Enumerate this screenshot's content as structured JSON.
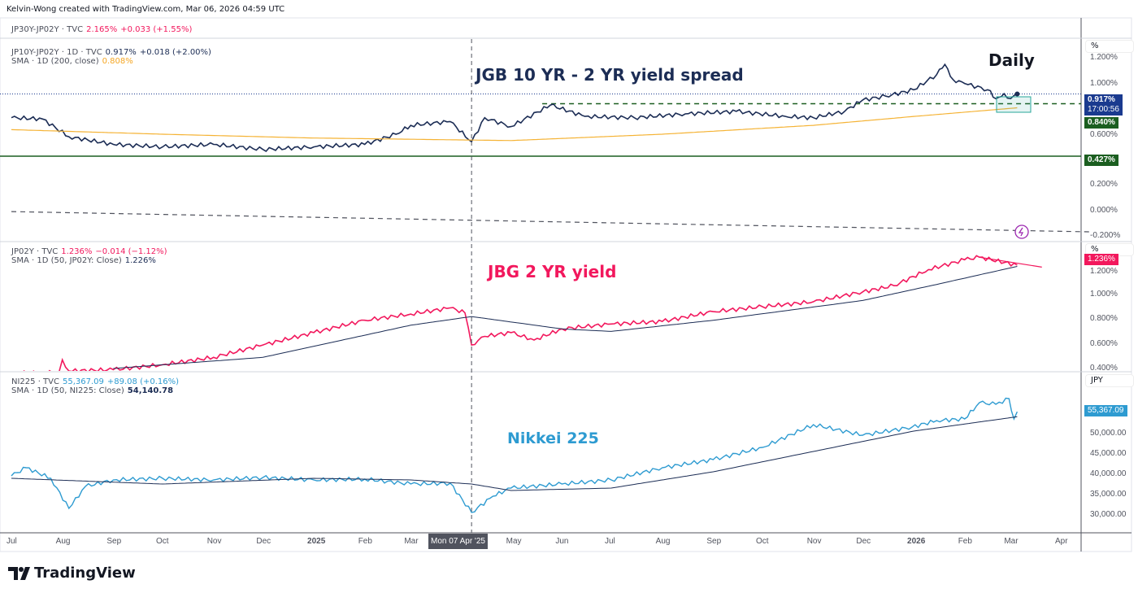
{
  "header": "Kelvin-Wong created with TradingView.com, Mar 06, 2026 04:59 UTC",
  "legend_top": {
    "symbol": "JP30Y-JP02Y · TVC",
    "value": "2.165%",
    "change": "+0.033 (+1.55%)"
  },
  "brand": "TradingView",
  "colors": {
    "spread": "#1c2d55",
    "sma200": "#f5b335",
    "jp02y": "#f2185d",
    "sma_dark": "#1c2d55",
    "nikkei": "#2e9bd1",
    "green": "#1b5e20",
    "box": "#26a69a"
  },
  "chart_data": [
    {
      "type": "line",
      "title": "JGB 10 YR - 2 YR yield spread",
      "annotation": "Daily",
      "unit": "%",
      "legend": {
        "symbol": "JP10Y-JP02Y · 1D · TVC",
        "value": "0.917%",
        "change": "+0.018 (+2.00%)",
        "sma_label": "SMA · 1D (200, close)",
        "sma_value": "0.808%"
      },
      "yticks": [
        "1.200%",
        "1.000%",
        "0.600%",
        "0.200%",
        "0.000%",
        "-0.200%"
      ],
      "ytick_values": [
        1.2,
        1.0,
        0.6,
        0.2,
        0.0,
        -0.2
      ],
      "ylim": [
        -0.24,
        1.35
      ],
      "tags": {
        "last": "0.917%",
        "countdown": "17:00:56",
        "support1": "0.840%",
        "support2": "0.427%"
      },
      "series": [
        {
          "key": "spread",
          "points": [
            [
              "2024-07-01",
              0.73
            ],
            [
              "2024-07-20",
              0.72
            ],
            [
              "2024-08-05",
              0.58
            ],
            [
              "2024-09-01",
              0.52
            ],
            [
              "2024-10-01",
              0.5
            ],
            [
              "2024-11-01",
              0.52
            ],
            [
              "2024-12-01",
              0.48
            ],
            [
              "2025-01-01",
              0.5
            ],
            [
              "2025-02-01",
              0.52
            ],
            [
              "2025-02-20",
              0.6
            ],
            [
              "2025-03-01",
              0.67
            ],
            [
              "2025-03-25",
              0.7
            ],
            [
              "2025-04-07",
              0.54
            ],
            [
              "2025-04-15",
              0.73
            ],
            [
              "2025-05-01",
              0.66
            ],
            [
              "2025-05-25",
              0.83
            ],
            [
              "2025-06-15",
              0.74
            ],
            [
              "2025-07-15",
              0.73
            ],
            [
              "2025-08-15",
              0.76
            ],
            [
              "2025-09-15",
              0.78
            ],
            [
              "2025-10-15",
              0.74
            ],
            [
              "2025-11-01",
              0.73
            ],
            [
              "2025-11-20",
              0.78
            ],
            [
              "2025-12-01",
              0.87
            ],
            [
              "2025-12-15",
              0.9
            ],
            [
              "2026-01-01",
              0.95
            ],
            [
              "2026-01-15",
              1.07
            ],
            [
              "2026-01-20",
              1.15
            ],
            [
              "2026-01-25",
              1.03
            ],
            [
              "2026-02-01",
              1.0
            ],
            [
              "2026-02-15",
              0.95
            ],
            [
              "2026-02-20",
              0.88
            ],
            [
              "2026-02-25",
              0.92
            ],
            [
              "2026-03-01",
              0.88
            ],
            [
              "2026-03-05",
              0.917
            ]
          ]
        },
        {
          "key": "sma200",
          "points": [
            [
              "2024-07-01",
              0.636
            ],
            [
              "2024-10-01",
              0.6
            ],
            [
              "2025-01-01",
              0.57
            ],
            [
              "2025-05-01",
              0.55
            ],
            [
              "2025-08-01",
              0.6
            ],
            [
              "2025-11-01",
              0.67
            ],
            [
              "2026-01-01",
              0.74
            ],
            [
              "2026-03-05",
              0.808
            ]
          ]
        }
      ],
      "levels": [
        {
          "value": 0.84,
          "from": "2025-05-20",
          "style": "dashed"
        },
        {
          "value": 0.427,
          "style": "solid"
        }
      ],
      "trendline": {
        "from": [
          "2024-07-01",
          -0.01
        ],
        "to": [
          "2026-04-20",
          -0.17
        ]
      }
    },
    {
      "type": "line",
      "title": "JBG 2 YR yield",
      "unit": "%",
      "legend": {
        "symbol": "JP02Y · TVC",
        "value": "1.236%",
        "change": "−0.014 (−1.12%)",
        "sma_label": "SMA · 1D (50, JP02Y: Close)",
        "sma_value": "1.226%"
      },
      "yticks": [
        "1.200%",
        "1.000%",
        "0.800%",
        "0.600%",
        "0.400%"
      ],
      "ytick_values": [
        1.2,
        1.0,
        0.8,
        0.6,
        0.4
      ],
      "ylim": [
        0.38,
        1.42
      ],
      "tags": {
        "last": "1.236%"
      },
      "series": [
        {
          "key": "jp02y",
          "points": [
            [
              "2024-07-01",
              0.36
            ],
            [
              "2024-07-30",
              0.37
            ],
            [
              "2024-08-01",
              0.47
            ],
            [
              "2024-08-05",
              0.38
            ],
            [
              "2024-09-01",
              0.39
            ],
            [
              "2024-10-01",
              0.43
            ],
            [
              "2024-11-01",
              0.49
            ],
            [
              "2024-12-01",
              0.59
            ],
            [
              "2025-01-01",
              0.69
            ],
            [
              "2025-02-01",
              0.79
            ],
            [
              "2025-03-01",
              0.84
            ],
            [
              "2025-03-25",
              0.89
            ],
            [
              "2025-04-03",
              0.85
            ],
            [
              "2025-04-07",
              0.59
            ],
            [
              "2025-04-15",
              0.66
            ],
            [
              "2025-05-01",
              0.69
            ],
            [
              "2025-05-15",
              0.63
            ],
            [
              "2025-06-01",
              0.72
            ],
            [
              "2025-07-01",
              0.76
            ],
            [
              "2025-08-01",
              0.78
            ],
            [
              "2025-09-01",
              0.86
            ],
            [
              "2025-10-01",
              0.9
            ],
            [
              "2025-11-01",
              0.94
            ],
            [
              "2025-12-01",
              1.02
            ],
            [
              "2025-12-20",
              1.07
            ],
            [
              "2026-01-10",
              1.2
            ],
            [
              "2026-02-01",
              1.28
            ],
            [
              "2026-02-10",
              1.3
            ],
            [
              "2026-03-05",
              1.236
            ]
          ]
        },
        {
          "key": "sma50",
          "points": [
            [
              "2024-09-01",
              0.4
            ],
            [
              "2024-12-01",
              0.49
            ],
            [
              "2025-03-01",
              0.75
            ],
            [
              "2025-04-07",
              0.82
            ],
            [
              "2025-06-01",
              0.72
            ],
            [
              "2025-07-01",
              0.7
            ],
            [
              "2025-09-01",
              0.79
            ],
            [
              "2025-12-01",
              0.95
            ],
            [
              "2026-01-15",
              1.08
            ],
            [
              "2026-03-05",
              1.226
            ]
          ]
        }
      ],
      "trendline": {
        "from": [
          "2026-02-10",
          1.3
        ],
        "to": [
          "2026-03-20",
          1.22
        ]
      }
    },
    {
      "type": "line",
      "title": "Nikkei 225",
      "unit": "JPY",
      "legend": {
        "symbol": "NI225 · TVC",
        "value": "55,367.09",
        "change": "+89.08 (+0.16%)",
        "sma_label": "SMA · 1D (50, NI225: Close)",
        "sma_value": "54,140.78"
      },
      "yticks": [
        "50,000.00",
        "45,000.00",
        "40,000.00",
        "35,000.00",
        "30,000.00"
      ],
      "ytick_values": [
        50000,
        45000,
        40000,
        35000,
        30000
      ],
      "ylim": [
        25600,
        65000
      ],
      "tags": {
        "last": "55,367.09"
      },
      "series": [
        {
          "key": "nikkei",
          "points": [
            [
              "2024-07-01",
              39600
            ],
            [
              "2024-07-10",
              41600
            ],
            [
              "2024-07-25",
              39000
            ],
            [
              "2024-08-05",
              31600
            ],
            [
              "2024-08-15",
              37000
            ],
            [
              "2024-09-01",
              38600
            ],
            [
              "2024-10-01",
              39000
            ],
            [
              "2024-11-01",
              38600
            ],
            [
              "2024-12-01",
              39200
            ],
            [
              "2025-01-01",
              38600
            ],
            [
              "2025-02-01",
              38800
            ],
            [
              "2025-03-01",
              37600
            ],
            [
              "2025-03-25",
              37800
            ],
            [
              "2025-04-07",
              30600
            ],
            [
              "2025-04-20",
              34600
            ],
            [
              "2025-05-01",
              36600
            ],
            [
              "2025-06-01",
              37600
            ],
            [
              "2025-07-01",
              38600
            ],
            [
              "2025-08-01",
              41600
            ],
            [
              "2025-09-01",
              43600
            ],
            [
              "2025-10-01",
              46600
            ],
            [
              "2025-11-01",
              52200
            ],
            [
              "2025-12-01",
              49600
            ],
            [
              "2025-12-31",
              51600
            ],
            [
              "2026-01-15",
              53200
            ],
            [
              "2026-02-01",
              53600
            ],
            [
              "2026-02-10",
              57600
            ],
            [
              "2026-02-20",
              57200
            ],
            [
              "2026-02-28",
              58600
            ],
            [
              "2026-03-03",
              53600
            ],
            [
              "2026-03-05",
              55367
            ]
          ]
        },
        {
          "key": "sma50n",
          "points": [
            [
              "2024-07-01",
              39000
            ],
            [
              "2024-10-01",
              37600
            ],
            [
              "2025-01-01",
              39000
            ],
            [
              "2025-03-01",
              38600
            ],
            [
              "2025-04-07",
              37600
            ],
            [
              "2025-05-01",
              36000
            ],
            [
              "2025-07-01",
              36600
            ],
            [
              "2025-09-01",
              40600
            ],
            [
              "2025-11-01",
              45600
            ],
            [
              "2026-01-01",
              50600
            ],
            [
              "2026-03-05",
              54140
            ]
          ]
        }
      ]
    }
  ],
  "time_axis": {
    "labels": [
      "Jul",
      "Aug",
      "Sep",
      "Oct",
      "Nov",
      "Dec",
      "2025",
      "Feb",
      "Mar",
      "May",
      "Jun",
      "Jul",
      "Aug",
      "Sep",
      "Oct",
      "Nov",
      "Dec",
      "2026",
      "Feb",
      "Mar",
      "Apr"
    ],
    "crosshair": "Mon 07 Apr '25",
    "crosshair_date": "2025-04-07"
  }
}
